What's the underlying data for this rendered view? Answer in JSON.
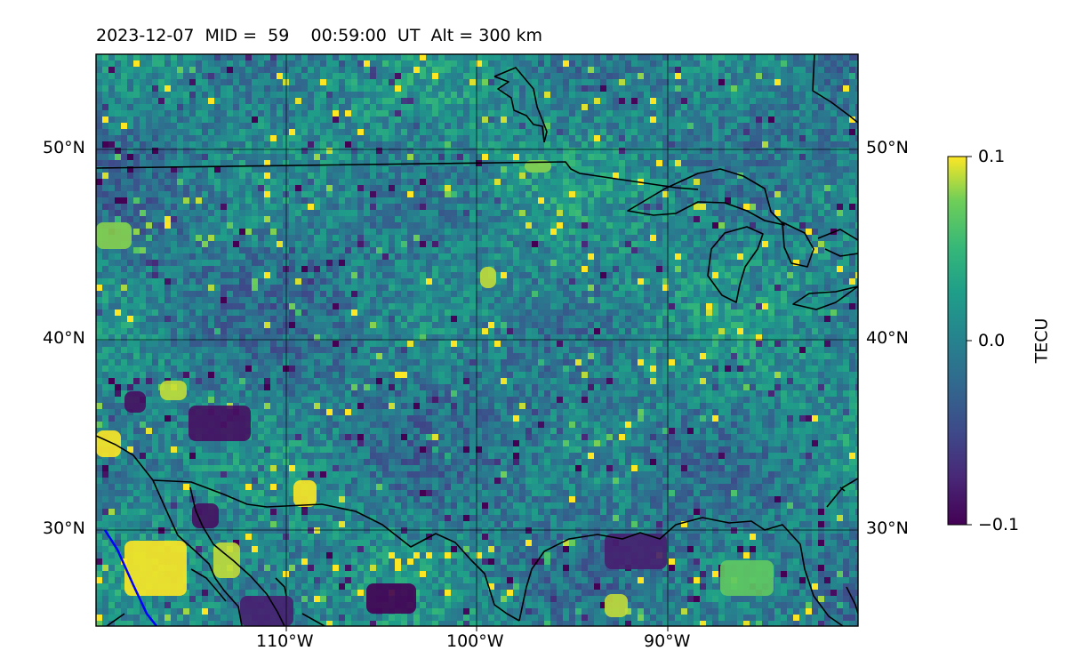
{
  "title": "2023-12-07  MID =  59    00:59:00  UT  Alt = 300 km",
  "map": {
    "lon_range": [
      -120,
      -80
    ],
    "lat_range": [
      25,
      55
    ],
    "lon_ticks": [
      {
        "value": -110,
        "label": "110°W"
      },
      {
        "value": -100,
        "label": "100°W"
      },
      {
        "value": -90,
        "label": "90°W"
      }
    ],
    "lat_ticks": [
      {
        "value": 50,
        "label": "50°N"
      },
      {
        "value": 40,
        "label": "40°N"
      },
      {
        "value": 30,
        "label": "30°N"
      }
    ],
    "gridlines": true,
    "field": "TEC perturbation",
    "colormap": "viridis"
  },
  "colorbar": {
    "label": "TECU",
    "min": -0.1,
    "max": 0.1,
    "ticks": [
      {
        "value": 0.1,
        "label": "0.1"
      },
      {
        "value": 0.0,
        "label": "0.0"
      },
      {
        "value": -0.1,
        "label": "−0.1"
      }
    ]
  },
  "colors": {
    "coastline": "#000000",
    "track_line": "#0000ff",
    "viridis_low": "#440154",
    "viridis_mid": "#21918c",
    "viridis_high": "#fde725"
  }
}
